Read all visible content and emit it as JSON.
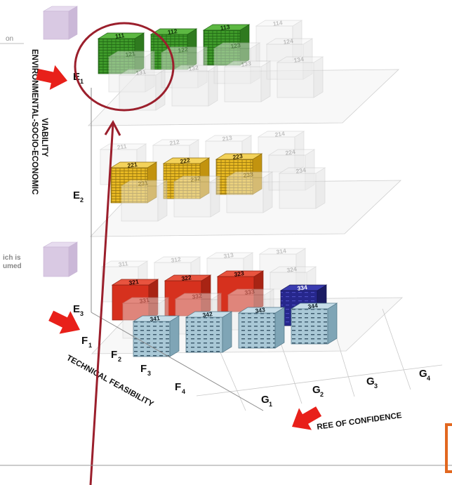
{
  "left_fragments": {
    "top": "on",
    "bottom_line1": "ich is",
    "bottom_line2": "umed"
  },
  "axes": {
    "vertical_title_line1": "ENVIRONMENTAL-SOCIO-ECONOMIC",
    "vertical_title_line2": "VIABILITY",
    "depth_title": "TECHNICAL FEASIBILITY",
    "horizontal_title": "REE OF CONFIDENCE",
    "e_levels": [
      {
        "letter": "E",
        "sub": "1"
      },
      {
        "letter": "E",
        "sub": "2"
      },
      {
        "letter": "E",
        "sub": "3"
      }
    ],
    "f_levels": [
      {
        "letter": "F",
        "sub": "1"
      },
      {
        "letter": "F",
        "sub": "2"
      },
      {
        "letter": "F",
        "sub": "3"
      },
      {
        "letter": "F",
        "sub": "4"
      }
    ],
    "g_levels": [
      {
        "letter": "G",
        "sub": "1"
      },
      {
        "letter": "G",
        "sub": "2"
      },
      {
        "letter": "G",
        "sub": "3"
      },
      {
        "letter": "G",
        "sub": "4"
      }
    ]
  },
  "colors": {
    "green": "#3f9b2a",
    "yellow": "#e8b923",
    "red": "#d6311e",
    "navy": "#26278c",
    "lightblue": "#a9c8d6",
    "ghost": "#c8c8c8",
    "lilac": "#d9c9e3",
    "arrow": "#e8201a",
    "circle": "#9b1f2c"
  },
  "cubes": [
    {
      "label": "111",
      "color": "green"
    },
    {
      "label": "112",
      "color": "green"
    },
    {
      "label": "113",
      "color": "green"
    },
    {
      "label": "114",
      "color": "ghost"
    },
    {
      "label": "121",
      "color": "ghost"
    },
    {
      "label": "122",
      "color": "ghost"
    },
    {
      "label": "123",
      "color": "ghost"
    },
    {
      "label": "124",
      "color": "ghost"
    },
    {
      "label": "131",
      "color": "ghost"
    },
    {
      "label": "132",
      "color": "ghost"
    },
    {
      "label": "133",
      "color": "ghost"
    },
    {
      "label": "134",
      "color": "ghost"
    },
    {
      "label": "211",
      "color": "ghost"
    },
    {
      "label": "212",
      "color": "ghost"
    },
    {
      "label": "213",
      "color": "ghost"
    },
    {
      "label": "214",
      "color": "ghost"
    },
    {
      "label": "221",
      "color": "yellow"
    },
    {
      "label": "222",
      "color": "yellow"
    },
    {
      "label": "223",
      "color": "yellow"
    },
    {
      "label": "224",
      "color": "ghost"
    },
    {
      "label": "231",
      "color": "ghost"
    },
    {
      "label": "232",
      "color": "ghost"
    },
    {
      "label": "233",
      "color": "ghost"
    },
    {
      "label": "234",
      "color": "ghost"
    },
    {
      "label": "311",
      "color": "ghost"
    },
    {
      "label": "312",
      "color": "ghost"
    },
    {
      "label": "313",
      "color": "ghost"
    },
    {
      "label": "314",
      "color": "ghost"
    },
    {
      "label": "321",
      "color": "red"
    },
    {
      "label": "322",
      "color": "red"
    },
    {
      "label": "323",
      "color": "red"
    },
    {
      "label": "324",
      "color": "ghost"
    },
    {
      "label": "331",
      "color": "ghost"
    },
    {
      "label": "332",
      "color": "ghost"
    },
    {
      "label": "333",
      "color": "ghost"
    },
    {
      "label": "334",
      "color": "navy"
    },
    {
      "label": "341",
      "color": "lightblue"
    },
    {
      "label": "342",
      "color": "lightblue"
    },
    {
      "label": "343",
      "color": "lightblue"
    },
    {
      "label": "344",
      "color": "lightblue"
    }
  ]
}
